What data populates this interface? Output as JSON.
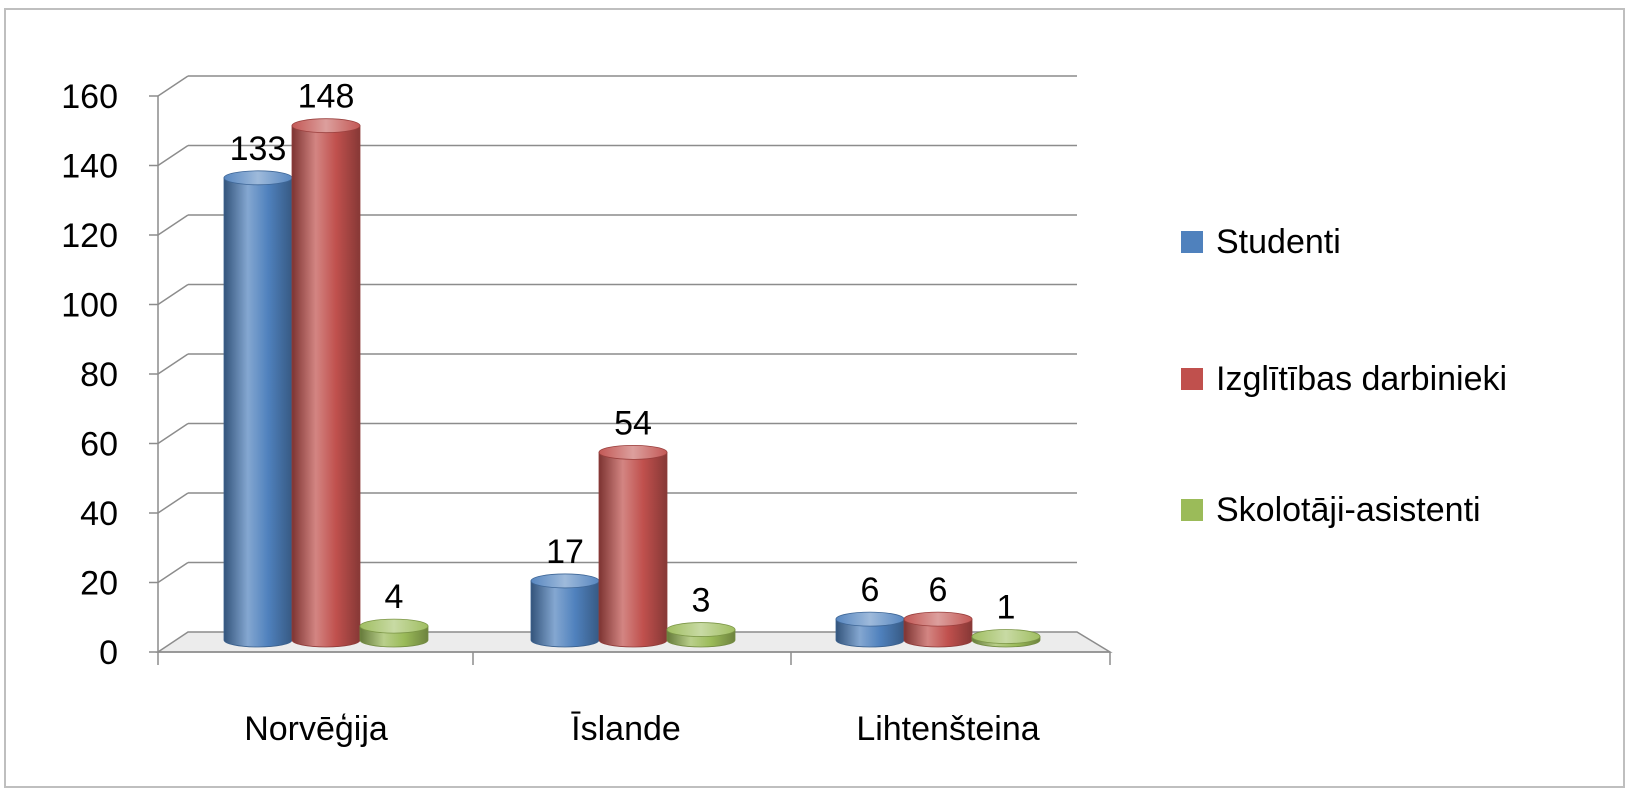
{
  "chart_data": {
    "type": "bar",
    "title": "",
    "xlabel": "",
    "ylabel": "",
    "categories": [
      "Norvēģija",
      "Īslande",
      "Lihtenšteina"
    ],
    "series": [
      {
        "name": "Studenti",
        "values": [
          133,
          17,
          6
        ],
        "color": "#4f81bd"
      },
      {
        "name": "Izglītības darbinieki",
        "values": [
          148,
          54,
          6
        ],
        "color": "#c0504d"
      },
      {
        "name": "Skolotāji-asistenti",
        "values": [
          4,
          3,
          1
        ],
        "color": "#9bbb59"
      }
    ],
    "ylim": [
      0,
      160
    ],
    "yticks": [
      0,
      20,
      40,
      60,
      80,
      100,
      120,
      140,
      160
    ],
    "grid": true,
    "legend": "right",
    "style": "3d-cylinder"
  }
}
